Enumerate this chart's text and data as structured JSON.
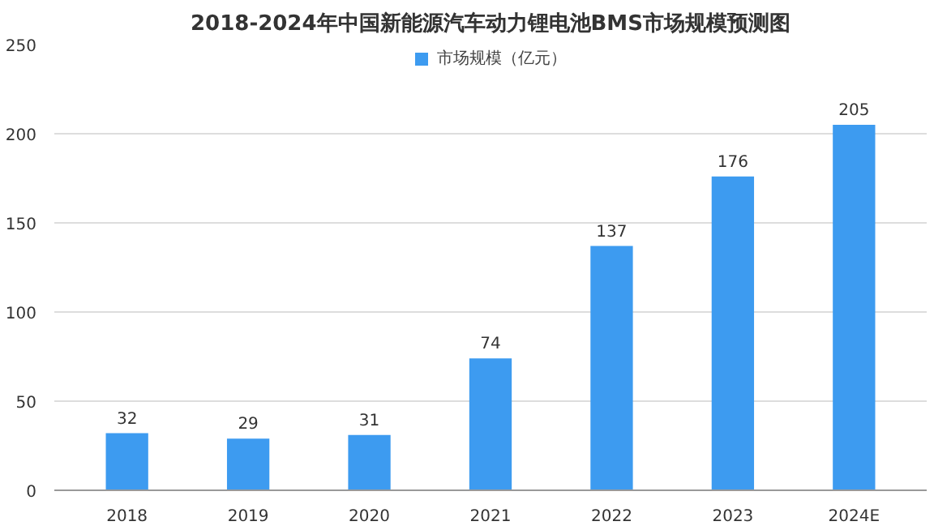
{
  "chart_data": {
    "type": "bar",
    "title": "2018-2024年中国新能源汽车动力锂电池BMS市场规模预测图",
    "categories": [
      "2018",
      "2019",
      "2020",
      "2021",
      "2022",
      "2023",
      "2024E"
    ],
    "series": [
      {
        "name": "市场规模（亿元）",
        "color": "#3d9bf0",
        "values": [
          32,
          29,
          31,
          74,
          137,
          176,
          205
        ]
      }
    ],
    "ylim": [
      0,
      250
    ],
    "yticks": [
      0,
      50,
      100,
      150,
      200,
      250
    ],
    "grid": "y",
    "legend": "top",
    "data_labels": true
  }
}
